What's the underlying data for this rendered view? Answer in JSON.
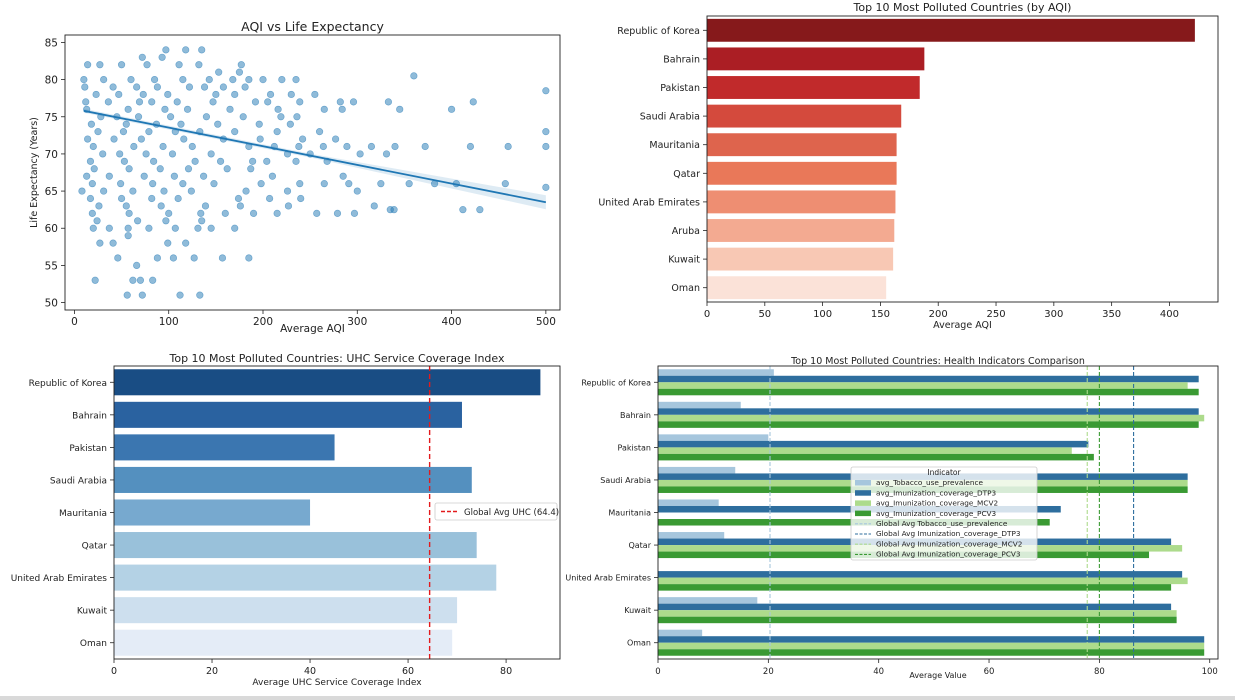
{
  "chart_data": [
    {
      "type": "scatter",
      "title": "AQI vs Life Expectancy",
      "xlabel": "Average AQI",
      "ylabel": "Life Expectancy (Years)",
      "xlim": [
        -10,
        515
      ],
      "ylim": [
        49,
        86
      ],
      "xticks": [
        0,
        100,
        200,
        300,
        400,
        500
      ],
      "yticks": [
        50,
        55,
        60,
        65,
        70,
        75,
        80,
        85
      ],
      "point_color": "#1f77b4",
      "regression": {
        "x0": 10,
        "y0": 75.8,
        "x1": 500,
        "y1": 63.5
      },
      "points": [
        [
          97,
          84
        ],
        [
          118,
          84
        ],
        [
          135,
          84
        ],
        [
          72,
          83
        ],
        [
          93,
          83
        ],
        [
          14,
          82
        ],
        [
          27,
          82
        ],
        [
          50,
          82
        ],
        [
          77,
          82
        ],
        [
          111,
          82
        ],
        [
          132,
          82
        ],
        [
          177,
          82
        ],
        [
          153,
          81
        ],
        [
          175,
          81
        ],
        [
          10,
          80
        ],
        [
          31,
          80
        ],
        [
          60,
          80
        ],
        [
          85,
          80
        ],
        [
          115,
          80
        ],
        [
          143,
          80
        ],
        [
          168,
          80
        ],
        [
          185,
          80
        ],
        [
          200,
          80
        ],
        [
          220,
          80
        ],
        [
          235,
          80
        ],
        [
          360,
          80.5
        ],
        [
          500,
          78.5
        ],
        [
          11,
          79
        ],
        [
          41,
          79
        ],
        [
          66,
          79
        ],
        [
          88,
          79
        ],
        [
          122,
          79
        ],
        [
          138,
          79
        ],
        [
          158,
          79
        ],
        [
          181,
          79
        ],
        [
          208,
          78
        ],
        [
          230,
          78
        ],
        [
          255,
          78
        ],
        [
          23,
          78
        ],
        [
          47,
          78
        ],
        [
          73,
          78
        ],
        [
          99,
          78
        ],
        [
          150,
          78
        ],
        [
          170,
          78
        ],
        [
          12,
          77
        ],
        [
          36,
          77
        ],
        [
          69,
          77
        ],
        [
          82,
          77
        ],
        [
          109,
          77
        ],
        [
          147,
          77
        ],
        [
          192,
          77
        ],
        [
          205,
          77
        ],
        [
          239,
          77
        ],
        [
          282,
          77
        ],
        [
          296,
          77
        ],
        [
          333,
          77
        ],
        [
          423,
          77
        ],
        [
          13,
          76
        ],
        [
          57,
          76
        ],
        [
          96,
          76
        ],
        [
          120,
          76
        ],
        [
          165,
          76
        ],
        [
          216,
          76
        ],
        [
          265,
          76
        ],
        [
          284,
          76
        ],
        [
          345,
          76
        ],
        [
          400,
          76
        ],
        [
          28,
          75
        ],
        [
          45,
          75
        ],
        [
          68,
          75
        ],
        [
          102,
          75
        ],
        [
          140,
          75
        ],
        [
          179,
          75
        ],
        [
          219,
          75
        ],
        [
          236,
          75
        ],
        [
          18,
          74
        ],
        [
          55,
          74
        ],
        [
          87,
          74
        ],
        [
          113,
          74
        ],
        [
          152,
          74
        ],
        [
          196,
          74
        ],
        [
          229,
          74
        ],
        [
          500,
          73
        ],
        [
          25,
          73
        ],
        [
          52,
          73
        ],
        [
          79,
          73
        ],
        [
          107,
          73
        ],
        [
          133,
          73
        ],
        [
          170,
          73
        ],
        [
          215,
          73
        ],
        [
          260,
          73
        ],
        [
          14,
          72
        ],
        [
          42,
          72
        ],
        [
          71,
          72
        ],
        [
          116,
          72
        ],
        [
          158,
          72
        ],
        [
          197,
          72
        ],
        [
          242,
          72
        ],
        [
          277,
          72
        ],
        [
          20,
          71
        ],
        [
          63,
          71
        ],
        [
          94,
          71
        ],
        [
          125,
          71
        ],
        [
          185,
          71
        ],
        [
          212,
          71
        ],
        [
          238,
          71
        ],
        [
          264,
          71
        ],
        [
          289,
          71
        ],
        [
          315,
          71
        ],
        [
          340,
          71
        ],
        [
          372,
          71
        ],
        [
          420,
          71
        ],
        [
          460,
          71
        ],
        [
          500,
          71
        ],
        [
          30,
          70
        ],
        [
          48,
          70
        ],
        [
          76,
          70
        ],
        [
          104,
          70
        ],
        [
          145,
          70
        ],
        [
          226,
          70
        ],
        [
          250,
          70
        ],
        [
          303,
          70
        ],
        [
          331,
          70
        ],
        [
          17,
          69
        ],
        [
          53,
          69
        ],
        [
          84,
          69
        ],
        [
          128,
          69
        ],
        [
          155,
          69
        ],
        [
          189,
          69
        ],
        [
          204,
          69
        ],
        [
          235,
          69
        ],
        [
          268,
          69
        ],
        [
          21,
          68
        ],
        [
          58,
          68
        ],
        [
          91,
          68
        ],
        [
          121,
          68
        ],
        [
          162,
          68
        ],
        [
          187,
          68
        ],
        [
          13,
          67
        ],
        [
          37,
          67
        ],
        [
          74,
          67
        ],
        [
          106,
          67
        ],
        [
          137,
          67
        ],
        [
          210,
          67
        ],
        [
          285,
          67
        ],
        [
          19,
          66
        ],
        [
          49,
          66
        ],
        [
          83,
          66
        ],
        [
          115,
          66
        ],
        [
          148,
          66
        ],
        [
          198,
          66
        ],
        [
          239,
          66
        ],
        [
          265,
          66
        ],
        [
          291,
          66
        ],
        [
          325,
          66
        ],
        [
          355,
          66
        ],
        [
          382,
          66
        ],
        [
          405,
          66
        ],
        [
          457,
          66
        ],
        [
          500,
          65.5
        ],
        [
          8,
          65
        ],
        [
          31,
          65
        ],
        [
          62,
          65
        ],
        [
          95,
          65
        ],
        [
          124,
          65
        ],
        [
          182,
          65
        ],
        [
          226,
          65
        ],
        [
          300,
          65
        ],
        [
          17,
          64
        ],
        [
          50,
          64
        ],
        [
          82,
          64
        ],
        [
          110,
          64
        ],
        [
          174,
          64
        ],
        [
          207,
          64
        ],
        [
          240,
          64
        ],
        [
          26,
          63
        ],
        [
          55,
          63
        ],
        [
          92,
          63
        ],
        [
          139,
          63
        ],
        [
          176,
          63
        ],
        [
          227,
          63
        ],
        [
          318,
          63
        ],
        [
          335,
          62.5
        ],
        [
          19,
          62
        ],
        [
          58,
          62
        ],
        [
          100,
          62
        ],
        [
          134,
          62
        ],
        [
          160,
          62
        ],
        [
          190,
          62
        ],
        [
          215,
          62
        ],
        [
          257,
          62
        ],
        [
          279,
          62
        ],
        [
          297,
          62
        ],
        [
          339,
          62.5
        ],
        [
          412,
          62.5
        ],
        [
          430,
          62.5
        ],
        [
          24,
          61
        ],
        [
          67,
          61
        ],
        [
          97,
          61
        ],
        [
          135,
          61
        ],
        [
          20,
          60
        ],
        [
          37,
          60
        ],
        [
          57,
          60
        ],
        [
          79,
          60
        ],
        [
          107,
          60
        ],
        [
          131,
          60
        ],
        [
          145,
          60
        ],
        [
          170,
          60
        ],
        [
          57,
          59
        ],
        [
          27,
          58
        ],
        [
          41,
          58
        ],
        [
          99,
          58
        ],
        [
          118,
          58
        ],
        [
          88,
          56
        ],
        [
          105,
          56
        ],
        [
          46,
          56
        ],
        [
          127,
          56
        ],
        [
          157,
          56
        ],
        [
          185,
          56
        ],
        [
          66,
          55
        ],
        [
          22,
          53
        ],
        [
          62,
          53
        ],
        [
          70,
          53
        ],
        [
          83,
          53
        ],
        [
          56,
          51
        ],
        [
          72,
          51
        ],
        [
          112,
          51
        ],
        [
          133,
          51
        ]
      ]
    },
    {
      "type": "bar",
      "orientation": "horizontal",
      "title": "Top 10 Most Polluted Countries (by AQI)",
      "xlabel": "Average AQI",
      "ylabel": "",
      "xlim": [
        0,
        442
      ],
      "xticks": [
        0,
        50,
        100,
        150,
        200,
        250,
        300,
        350,
        400
      ],
      "categories": [
        "Republic of Korea",
        "Bahrain",
        "Pakistan",
        "Saudi Arabia",
        "Mauritania",
        "Qatar",
        "United Arab Emirates",
        "Aruba",
        "Kuwait",
        "Oman"
      ],
      "values": [
        422,
        188,
        184,
        168,
        164,
        164,
        163,
        162,
        161,
        155
      ],
      "colors": [
        "#86191b",
        "#ab1e24",
        "#c12a2b",
        "#d44a3d",
        "#de644d",
        "#e97859",
        "#ee8e72",
        "#f3aa91",
        "#f8c8b4",
        "#fbe2d8"
      ]
    },
    {
      "type": "bar",
      "orientation": "horizontal",
      "title": "Top 10 Most Polluted Countries: UHC Service Coverage Index",
      "xlabel": "Average UHC Service Coverage Index",
      "ylabel": "",
      "xlim": [
        0,
        91
      ],
      "xticks": [
        0,
        20,
        40,
        60,
        80
      ],
      "categories": [
        "Republic of Korea",
        "Bahrain",
        "Pakistan",
        "Saudi Arabia",
        "Mauritania",
        "Qatar",
        "United Arab Emirates",
        "Kuwait",
        "Oman"
      ],
      "values": [
        87,
        71,
        45,
        73,
        40,
        74,
        78,
        70,
        69
      ],
      "colors": [
        "#194d84",
        "#2a62a0",
        "#3b76b0",
        "#5490bf",
        "#77a9cf",
        "#99c1da",
        "#b4d2e5",
        "#cddfee",
        "#e4ecf7"
      ],
      "reference_line": {
        "value": 64.4,
        "label": "Global Avg UHC (64.4)",
        "color": "#e31a1c"
      }
    },
    {
      "type": "bar",
      "orientation": "horizontal",
      "title": "Top 10 Most Polluted Countries: Health Indicators Comparison",
      "xlabel": "Average Value",
      "ylabel": "",
      "xlim": [
        0,
        101.5
      ],
      "xticks": [
        0,
        20,
        40,
        60,
        80,
        100
      ],
      "categories": [
        "Republic of Korea",
        "Bahrain",
        "Pakistan",
        "Saudi Arabia",
        "Mauritania",
        "Qatar",
        "United Arab Emirates",
        "Kuwait",
        "Oman"
      ],
      "legend_title": "Indicator",
      "series": [
        {
          "name": "avg_Tobacco_use_prevalence",
          "color": "#a6c6dd",
          "values": [
            21,
            15,
            20,
            14,
            11,
            12,
            0,
            18,
            8
          ]
        },
        {
          "name": "avg_Imunization_coverage_DTP3",
          "color": "#2e6e9e",
          "values": [
            98,
            98,
            78,
            96,
            73,
            93,
            95,
            93,
            99
          ]
        },
        {
          "name": "avg_Imunization_coverage_MCV2",
          "color": "#addb8c",
          "values": [
            96,
            99,
            75,
            96,
            0,
            95,
            96,
            94,
            99
          ]
        },
        {
          "name": "avg_Imunization_coverage_PCV3",
          "color": "#3a9a33",
          "values": [
            98,
            98,
            79,
            96,
            71,
            89,
            93,
            94,
            99
          ]
        }
      ],
      "reference_lines": [
        {
          "name": "Global Avg Tobacco_use_prevalence",
          "value": 20.3,
          "color": "#a6c6dd"
        },
        {
          "name": "Global Avg Imunization_coverage_DTP3",
          "value": 86.2,
          "color": "#2e6e9e"
        },
        {
          "name": "Global Avg Imunization_coverage_MCV2",
          "value": 77.8,
          "color": "#addb8c"
        },
        {
          "name": "Global Avg Imunization_coverage_PCV3",
          "value": 80.0,
          "color": "#3a9a33"
        }
      ]
    }
  ]
}
